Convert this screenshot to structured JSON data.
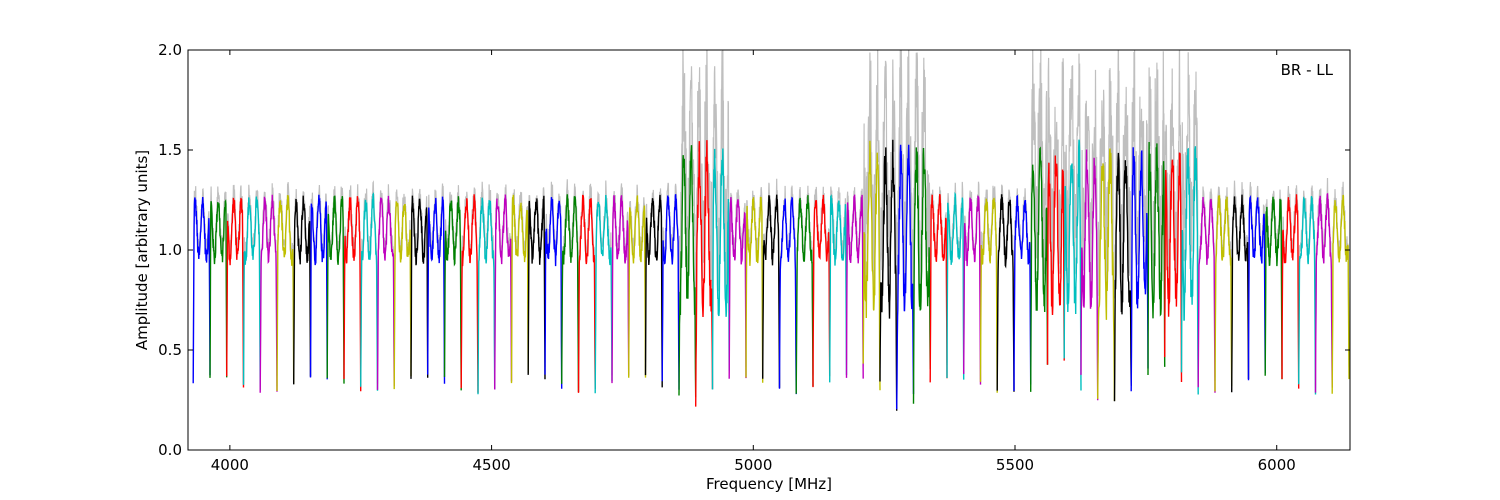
{
  "chart_data": {
    "type": "line",
    "title": "",
    "xlabel": "Frequency [MHz]",
    "ylabel": "Amplitude [arbitrary units]",
    "xlim": [
      3920,
      6140
    ],
    "ylim": [
      0.0,
      2.0
    ],
    "xticks": [
      4000,
      4500,
      5000,
      5500,
      6000
    ],
    "yticks": [
      0.0,
      0.5,
      1.0,
      1.5,
      2.0
    ],
    "xtick_labels": [
      "4000",
      "4500",
      "5000",
      "5500",
      "6000"
    ],
    "ytick_labels": [
      "0.0",
      "0.5",
      "1.0",
      "1.5",
      "2.0"
    ],
    "annotation": "BR - LL",
    "grid": false,
    "background_trace_color": "#bfbfbf",
    "color_cycle": [
      "#0000ff",
      "#008000",
      "#ff0000",
      "#00bfbf",
      "#bf00bf",
      "#bfbf00",
      "#000000"
    ],
    "band_start_mhz": 3930,
    "band_spacing_mhz": 32,
    "band_count": 69,
    "series_note": "Spectral-window bandpass traces; one colored trace per window cycling through blue, green, red, cyan, magenta, yellow, black; grey trace behind shows unflagged data."
  }
}
